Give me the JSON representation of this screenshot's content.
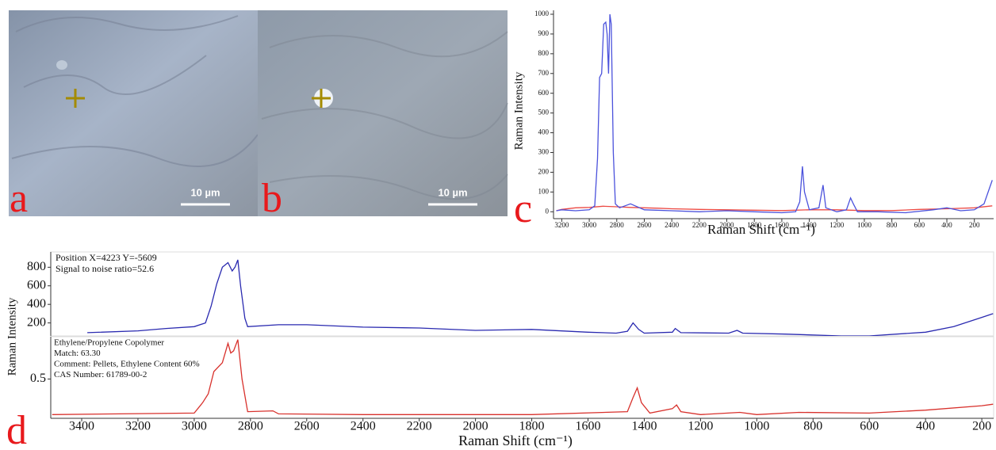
{
  "images": [
    {
      "label": "a",
      "scale_bar": "10 µm"
    },
    {
      "label": "b",
      "scale_bar": "10 µm"
    }
  ],
  "chart_data": [
    {
      "type": "line",
      "panel_label": "c",
      "xlabel": "Raman Shift (cm⁻¹)",
      "ylabel": "Raman Intensity",
      "xlim": [
        3260,
        60
      ],
      "ylim": [
        -35,
        1020
      ],
      "xticks": [
        3200,
        3000,
        2800,
        2600,
        2400,
        2200,
        2000,
        1800,
        1600,
        1400,
        1200,
        1000,
        800,
        600,
        400,
        200
      ],
      "yticks": [
        0,
        100,
        200,
        300,
        400,
        500,
        600,
        700,
        800,
        900,
        1000
      ],
      "series": [
        {
          "color": "#ec4a44",
          "x": [
            3240,
            3200,
            3100,
            3000,
            2900,
            2800,
            2700,
            2600,
            2500,
            2400,
            2200,
            2000,
            1800,
            1600,
            1400,
            1200,
            1000,
            800,
            600,
            400,
            200,
            70
          ],
          "values": [
            5,
            12,
            20,
            22,
            28,
            25,
            22,
            20,
            18,
            15,
            12,
            10,
            8,
            6,
            10,
            10,
            6,
            6,
            12,
            15,
            20,
            30
          ]
        },
        {
          "color": "#4b52dc",
          "x": [
            3240,
            3200,
            3100,
            3000,
            2960,
            2940,
            2925,
            2910,
            2895,
            2880,
            2870,
            2860,
            2850,
            2840,
            2825,
            2810,
            2780,
            2700,
            2600,
            2400,
            2200,
            2000,
            1800,
            1600,
            1500,
            1470,
            1450,
            1435,
            1400,
            1330,
            1300,
            1280,
            1200,
            1130,
            1100,
            1080,
            1050,
            900,
            700,
            500,
            400,
            300,
            200,
            130,
            70
          ],
          "values": [
            5,
            10,
            5,
            10,
            30,
            270,
            680,
            700,
            950,
            960,
            900,
            700,
            1000,
            950,
            300,
            40,
            20,
            40,
            10,
            5,
            0,
            5,
            0,
            -5,
            0,
            50,
            230,
            100,
            10,
            20,
            135,
            20,
            0,
            10,
            70,
            40,
            0,
            0,
            -5,
            10,
            20,
            5,
            10,
            40,
            160
          ]
        }
      ]
    },
    {
      "type": "line",
      "ylabel": "Raman Intensity",
      "annotations": [
        "Position X=4223 Y=-5609",
        "Signal to noise ratio=52.6"
      ],
      "xlim": [
        3510,
        158
      ],
      "ylim": [
        60,
        965
      ],
      "yticks": [
        200,
        400,
        600,
        800
      ],
      "series": [
        {
          "color": "#2a2ab0",
          "x": [
            3380,
            3200,
            3100,
            3000,
            2960,
            2940,
            2920,
            2900,
            2880,
            2865,
            2855,
            2845,
            2835,
            2820,
            2810,
            2700,
            2600,
            2400,
            2200,
            2000,
            1800,
            1600,
            1500,
            1460,
            1440,
            1420,
            1400,
            1300,
            1290,
            1270,
            1100,
            1070,
            1050,
            900,
            700,
            600,
            400,
            300,
            200,
            160
          ],
          "values": [
            95,
            115,
            140,
            160,
            200,
            380,
            620,
            800,
            850,
            760,
            800,
            880,
            600,
            250,
            160,
            180,
            180,
            155,
            145,
            120,
            130,
            100,
            90,
            110,
            200,
            130,
            90,
            100,
            140,
            95,
            90,
            120,
            90,
            80,
            60,
            60,
            100,
            160,
            260,
            300
          ]
        }
      ]
    },
    {
      "type": "line",
      "panel_label": "d",
      "xlabel": "Raman Shift (cm⁻¹)",
      "annotations": [
        "Ethylene/Propylene Copolymer",
        "Match: 63.30",
        "Comment: Pellets, Ethylene Content 60%",
        "CAS Number: 61789-00-2"
      ],
      "xlim": [
        3510,
        158
      ],
      "ylim": [
        -0.03,
        1.07
      ],
      "xticks": [
        3400,
        3200,
        3000,
        2800,
        2600,
        2400,
        2200,
        2000,
        1800,
        1600,
        1400,
        1200,
        1000,
        800,
        600,
        400,
        200
      ],
      "yticks": [
        0.5
      ],
      "series": [
        {
          "color": "#d8312c",
          "x": [
            3505,
            3000,
            2970,
            2950,
            2930,
            2900,
            2880,
            2870,
            2860,
            2845,
            2830,
            2810,
            2720,
            2700,
            2400,
            1800,
            1460,
            1440,
            1425,
            1410,
            1380,
            1300,
            1285,
            1270,
            1200,
            1060,
            1000,
            850,
            600,
            400,
            200,
            160
          ],
          "values": [
            0.02,
            0.04,
            0.18,
            0.3,
            0.6,
            0.72,
            0.98,
            0.85,
            0.88,
            1.03,
            0.5,
            0.06,
            0.07,
            0.03,
            0.02,
            0.02,
            0.06,
            0.25,
            0.38,
            0.18,
            0.04,
            0.1,
            0.15,
            0.06,
            0.02,
            0.05,
            0.02,
            0.05,
            0.04,
            0.08,
            0.14,
            0.16
          ]
        }
      ]
    }
  ]
}
